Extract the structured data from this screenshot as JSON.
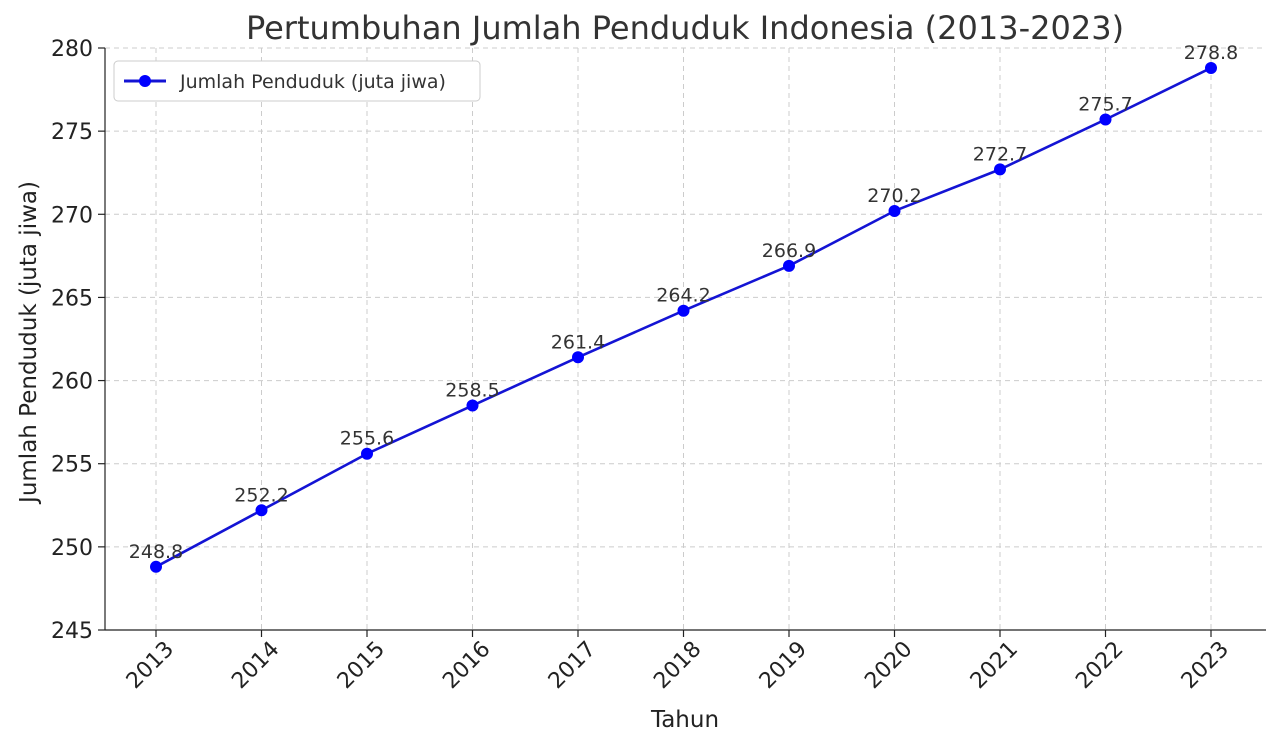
{
  "chart_data": {
    "type": "line",
    "title": "Pertumbuhan Jumlah Penduduk Indonesia (2013-2023)",
    "xlabel": "Tahun",
    "ylabel": "Jumlah Penduduk (juta jiwa)",
    "categories": [
      "2013",
      "2014",
      "2015",
      "2016",
      "2017",
      "2018",
      "2019",
      "2020",
      "2021",
      "2022",
      "2023"
    ],
    "series": [
      {
        "name": "Jumlah Penduduk (juta jiwa)",
        "values": [
          248.8,
          252.2,
          255.6,
          258.5,
          261.4,
          264.2,
          266.9,
          270.2,
          272.7,
          275.7,
          278.8
        ],
        "data_labels": [
          "248.8",
          "252.2",
          "255.6",
          "258.5",
          "261.4",
          "264.2",
          "266.9",
          "270.2",
          "272.7",
          "275.7",
          "278.8"
        ],
        "color": "#0000ff",
        "line_color": "#1414d4",
        "marker": "circle"
      }
    ],
    "ylim": [
      245,
      280
    ],
    "yticks": [
      "245",
      "250",
      "255",
      "260",
      "265",
      "270",
      "275",
      "280"
    ],
    "x_tick_rotation_deg": 45,
    "grid": true,
    "grid_style": "dashed",
    "legend_position": "top-left"
  }
}
